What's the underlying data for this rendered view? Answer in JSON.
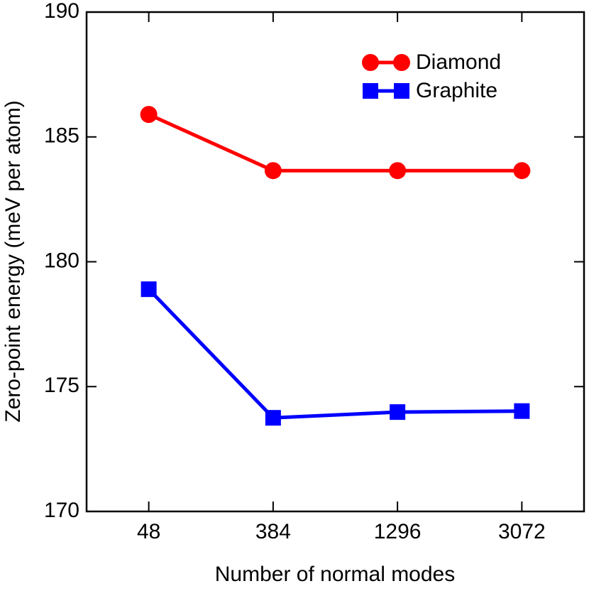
{
  "chart_data": {
    "type": "line",
    "x_label": "Number of normal modes",
    "y_label": "Zero-point energy (meV per atom)",
    "categories": [
      "48",
      "384",
      "1296",
      "3072"
    ],
    "series": [
      {
        "name": "Diamond",
        "color": "#ff0000",
        "marker": "circle",
        "values": [
          185.9,
          183.65,
          183.65,
          183.65
        ]
      },
      {
        "name": "Graphite",
        "color": "#0000ff",
        "marker": "square",
        "values": [
          178.9,
          173.75,
          173.98,
          174.02
        ]
      }
    ],
    "ylim": [
      170,
      190
    ],
    "yticks": [
      170,
      175,
      180,
      185,
      190
    ],
    "legend": "upper right",
    "grid": false
  }
}
